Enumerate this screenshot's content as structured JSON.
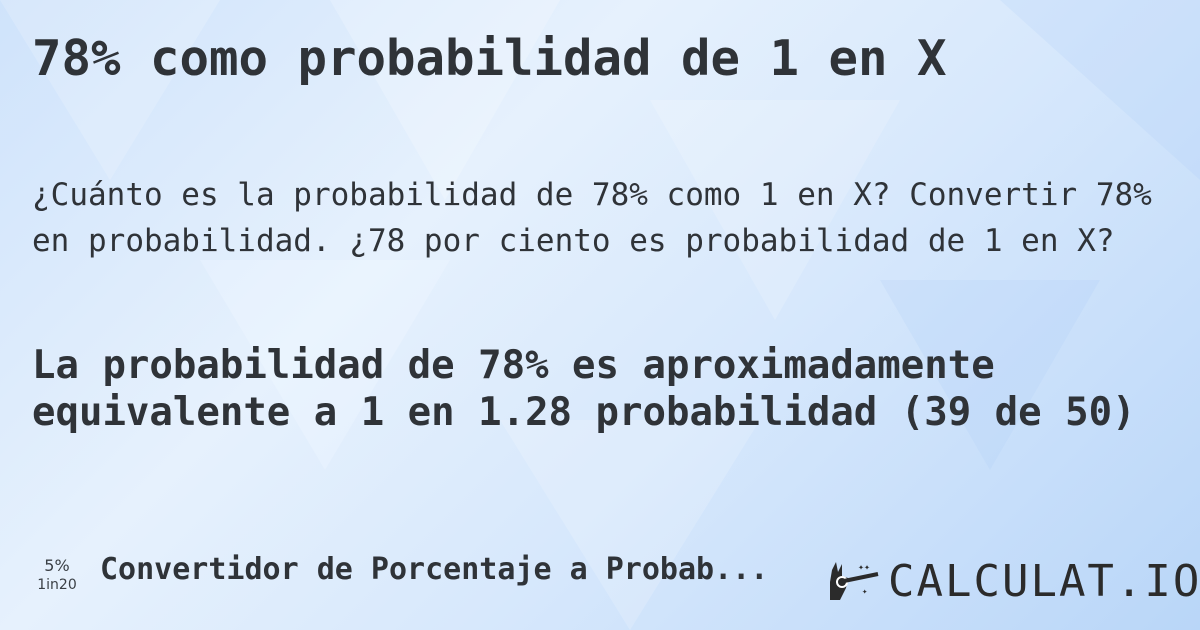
{
  "title": "78% como probabilidad de 1 en X",
  "description": "¿Cuánto es la probabilidad de 78% como 1 en X? Convertir 78% en probabilidad. ¿78 por ciento es probabilidad de 1 en X?",
  "answer": "La probabilidad de 78% es aproximadamente equivalente a 1 en 1.28 probabilidad (39 de 50)",
  "footer": {
    "mini_icon": {
      "percent": "5%",
      "odds": "1in20"
    },
    "link": "Convertidor de Porcentaje a Probab...",
    "logo_text": "CALCULAT.IO"
  }
}
